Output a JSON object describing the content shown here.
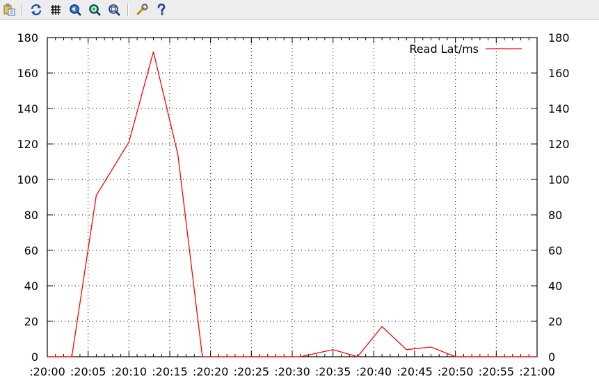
{
  "toolbar": {
    "buttons": [
      {
        "icon": "copy-to-clipboard-icon"
      },
      {
        "icon": "refresh-icon"
      },
      {
        "icon": "grid-icon"
      },
      {
        "icon": "zoom-previous-icon"
      },
      {
        "icon": "zoom-next-icon"
      },
      {
        "icon": "unzoom-icon"
      },
      {
        "icon": "settings-icon"
      },
      {
        "icon": "help-icon"
      }
    ]
  },
  "colors": {
    "series": "#ff0000",
    "grid": "#000000",
    "toolbar_bg": "#ededed"
  },
  "chart_data": {
    "type": "line",
    "title": "",
    "xlabel": "",
    "ylabel": "",
    "xlim": [
      0,
      60
    ],
    "ylim": [
      0,
      180
    ],
    "grid": true,
    "legend_position": "top-right",
    "x_tick_values": [
      0,
      5,
      10,
      15,
      20,
      25,
      30,
      35,
      40,
      45,
      50,
      55,
      60
    ],
    "x_tick_labels": [
      ":20:00",
      ":20:05",
      ":20:10",
      ":20:15",
      ":20:20",
      ":20:25",
      ":20:30",
      ":20:35",
      ":20:40",
      ":20:45",
      ":20:50",
      ":20:55",
      ":21:00"
    ],
    "y_tick_values": [
      0,
      20,
      40,
      60,
      80,
      100,
      120,
      140,
      160,
      180
    ],
    "y_tick_labels": [
      "0",
      "20",
      "40",
      "60",
      "80",
      "100",
      "120",
      "140",
      "160",
      "180"
    ],
    "series": [
      {
        "name": "Read Lat/ms",
        "color": "#ff0000",
        "x": [
          0,
          3,
          6,
          10,
          13,
          16,
          19,
          25,
          31,
          35,
          38,
          41,
          44,
          47,
          50,
          53,
          60
        ],
        "y": [
          0,
          0,
          91,
          121,
          172,
          114,
          0,
          0,
          0,
          4,
          0,
          17,
          4,
          5.5,
          0,
          0,
          0
        ]
      }
    ]
  }
}
